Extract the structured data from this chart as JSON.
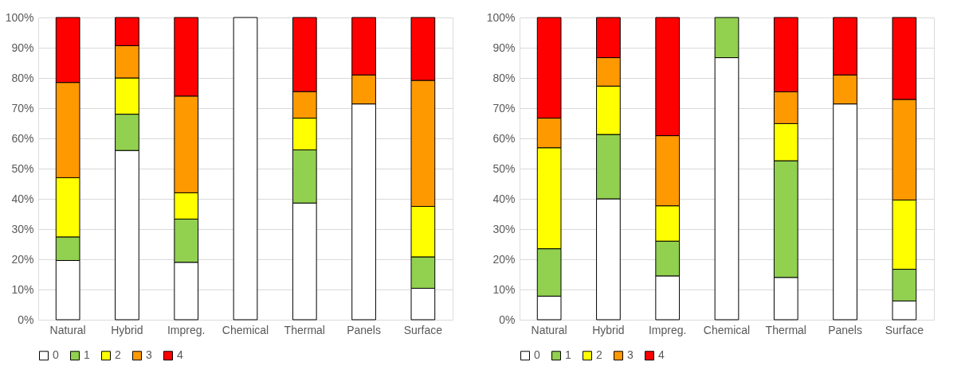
{
  "chart_data": [
    {
      "type": "bar",
      "stacked": true,
      "categories": [
        "Natural",
        "Hybrid",
        "Impreg.",
        "Chemical",
        "Thermal",
        "Panels",
        "Surface"
      ],
      "ylim": [
        0,
        100
      ],
      "yticks": [
        {
          "value": 0,
          "label": "0%"
        },
        {
          "value": 10,
          "label": "10%"
        },
        {
          "value": 20,
          "label": "20%"
        },
        {
          "value": 30,
          "label": "30%"
        },
        {
          "value": 40,
          "label": "40%"
        },
        {
          "value": 50,
          "label": "50%"
        },
        {
          "value": 60,
          "label": "60%"
        },
        {
          "value": 70,
          "label": "70%"
        },
        {
          "value": 80,
          "label": "80%"
        },
        {
          "value": 90,
          "label": "90%"
        },
        {
          "value": 100,
          "label": "100%"
        }
      ],
      "grid": "y",
      "legend": "bottom",
      "series": [
        {
          "name": "0",
          "color": "#ffffff",
          "values": [
            19.6,
            56,
            19,
            100,
            38.6,
            71.4,
            10.4
          ]
        },
        {
          "name": "1",
          "color": "#92d050",
          "values": [
            7.8,
            12,
            14.3,
            null,
            17.6,
            null,
            10.4
          ]
        },
        {
          "name": "2",
          "color": "#ffff00",
          "values": [
            19.6,
            12,
            8.7,
            null,
            10.5,
            null,
            16.7
          ]
        },
        {
          "name": "3",
          "color": "#ff9900",
          "values": [
            31.5,
            10.7,
            32,
            null,
            8.8,
            9.6,
            41.7
          ]
        },
        {
          "name": "4",
          "color": "#ff0000",
          "values": [
            21.5,
            9.3,
            26,
            null,
            24.5,
            19,
            20.8
          ]
        }
      ]
    },
    {
      "type": "bar",
      "stacked": true,
      "categories": [
        "Natural",
        "Hybrid",
        "Impreg.",
        "Chemical",
        "Thermal",
        "Panels",
        "Surface"
      ],
      "ylim": [
        0,
        100
      ],
      "yticks": [
        {
          "value": 0,
          "label": "0%"
        },
        {
          "value": 10,
          "label": "10%"
        },
        {
          "value": 20,
          "label": "20%"
        },
        {
          "value": 30,
          "label": "30%"
        },
        {
          "value": 40,
          "label": "40%"
        },
        {
          "value": 50,
          "label": "50%"
        },
        {
          "value": 60,
          "label": "60%"
        },
        {
          "value": 70,
          "label": "70%"
        },
        {
          "value": 80,
          "label": "80%"
        },
        {
          "value": 90,
          "label": "90%"
        },
        {
          "value": 100,
          "label": "100%"
        }
      ],
      "grid": "y",
      "legend": "bottom",
      "series": [
        {
          "name": "0",
          "color": "#ffffff",
          "values": [
            7.8,
            40,
            14.5,
            86.7,
            14,
            71.4,
            6.2
          ]
        },
        {
          "name": "1",
          "color": "#92d050",
          "values": [
            15.7,
            21.3,
            11.5,
            13.3,
            38.6,
            null,
            10.5
          ]
        },
        {
          "name": "2",
          "color": "#ffff00",
          "values": [
            33.4,
            16,
            11.7,
            null,
            12.3,
            null,
            22.9
          ]
        },
        {
          "name": "3",
          "color": "#ff9900",
          "values": [
            9.8,
            9.4,
            23.2,
            null,
            10.5,
            9.6,
            33.3
          ]
        },
        {
          "name": "4",
          "color": "#ff0000",
          "values": [
            33.3,
            13.3,
            39.1,
            null,
            24.6,
            19,
            27.1
          ]
        }
      ]
    }
  ]
}
